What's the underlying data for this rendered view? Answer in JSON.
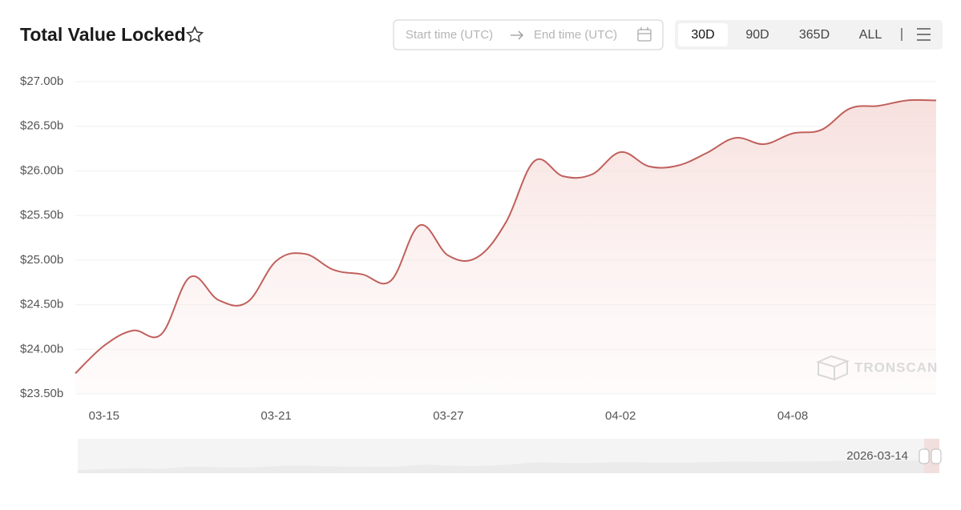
{
  "chart_data": {
    "type": "line",
    "title": "Total Value Locked",
    "categories": [
      null,
      "03-15",
      null,
      null,
      null,
      null,
      null,
      "03-21",
      null,
      null,
      null,
      null,
      null,
      "03-27",
      null,
      null,
      null,
      null,
      null,
      "04-02",
      null,
      null,
      null,
      null,
      null,
      "04-08",
      null,
      null,
      null,
      null,
      null
    ],
    "series": [
      {
        "color": "#c0605c",
        "values": [
          23.73,
          24.04,
          24.21,
          24.17,
          24.81,
          24.55,
          24.53,
          24.99,
          25.07,
          24.89,
          24.84,
          24.77,
          25.39,
          25.05,
          25.03,
          25.42,
          26.11,
          25.94,
          25.96,
          26.21,
          26.05,
          26.06,
          26.2,
          26.37,
          26.3,
          26.42,
          26.46,
          26.7,
          26.73,
          26.79,
          26.79
        ]
      }
    ],
    "ylim": [
      23.5,
      27
    ],
    "yticks": [
      {
        "value": 23.5,
        "label": "$23.50b"
      },
      {
        "value": 24,
        "label": "$24.00b"
      },
      {
        "value": 24.5,
        "label": "$24.50b"
      },
      {
        "value": 25,
        "label": "$25.00b"
      },
      {
        "value": 25.5,
        "label": "$25.50b"
      },
      {
        "value": 26,
        "label": "$26.00b"
      },
      {
        "value": 26.5,
        "label": "$26.50b"
      },
      {
        "value": 27,
        "label": "$27.00b"
      }
    ],
    "grid": true,
    "watermark": "TRONSCAN",
    "navigator_label": "2026-03-14"
  },
  "controls": {
    "start": "Start time (UTC)",
    "end": "End time (UTC)",
    "ranges": [
      "30D",
      "90D",
      "365D",
      "ALL"
    ],
    "selected": "30D"
  }
}
